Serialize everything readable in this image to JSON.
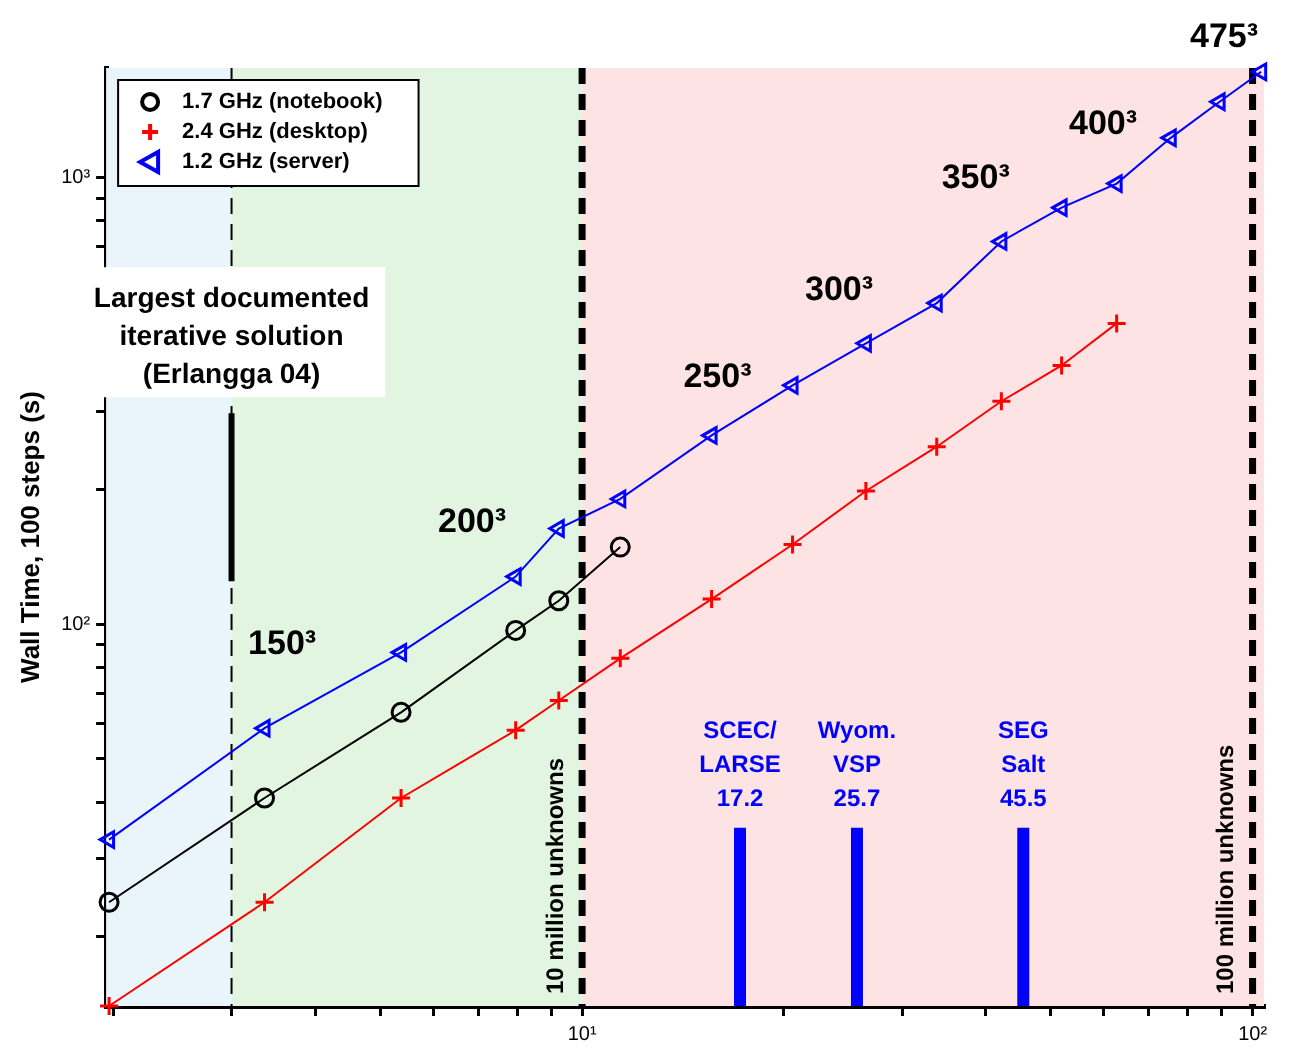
{
  "chart_data": {
    "type": "line",
    "ylabel": "Wall Time, 100 steps (s)",
    "log": "xy",
    "legend": "top left",
    "xlim": [
      1.95,
      104
    ],
    "ylim": [
      14,
      1760
    ],
    "xticks": [
      {
        "value": 2,
        "label": null
      },
      {
        "value": 3,
        "label": null
      },
      {
        "value": 4,
        "label": null
      },
      {
        "value": 5,
        "label": null
      },
      {
        "value": 6,
        "label": null
      },
      {
        "value": 7,
        "label": null
      },
      {
        "value": 8,
        "label": null
      },
      {
        "value": 9,
        "label": null
      },
      {
        "value": 10,
        "label": "10¹"
      },
      {
        "value": 20,
        "label": null
      },
      {
        "value": 30,
        "label": null
      },
      {
        "value": 40,
        "label": null
      },
      {
        "value": 50,
        "label": null
      },
      {
        "value": 60,
        "label": null
      },
      {
        "value": 70,
        "label": null
      },
      {
        "value": 80,
        "label": null
      },
      {
        "value": 90,
        "label": null
      },
      {
        "value": 100,
        "label": "10²"
      }
    ],
    "yticks": [
      {
        "value": 20,
        "label": null
      },
      {
        "value": 30,
        "label": null
      },
      {
        "value": 40,
        "label": null
      },
      {
        "value": 50,
        "label": null
      },
      {
        "value": 60,
        "label": null
      },
      {
        "value": 70,
        "label": null
      },
      {
        "value": 80,
        "label": null
      },
      {
        "value": 90,
        "label": null
      },
      {
        "value": 100,
        "label": "10²"
      },
      {
        "value": 200,
        "label": null
      },
      {
        "value": 300,
        "label": null
      },
      {
        "value": 400,
        "label": null
      },
      {
        "value": 500,
        "label": null
      },
      {
        "value": 600,
        "label": null
      },
      {
        "value": 700,
        "label": null
      },
      {
        "value": 800,
        "label": null
      },
      {
        "value": 900,
        "label": null
      },
      {
        "value": 1000,
        "label": "10³"
      }
    ],
    "series": [
      {
        "name": "1.7 GHz (notebook)",
        "color": "#000000",
        "marker": "circle",
        "x": [
          1.97,
          3.36,
          5.37,
          7.96,
          9.23,
          11.4
        ],
        "values": [
          23.9,
          40.9,
          63.6,
          97,
          113,
          149
        ]
      },
      {
        "name": "2.4 GHz (desktop)",
        "color": "#ff0000",
        "marker": "cross",
        "x": [
          1.97,
          3.36,
          5.37,
          7.96,
          9.23,
          11.4,
          15.6,
          20.6,
          26.5,
          33.8,
          42.2,
          51.9,
          62.7
        ],
        "values": [
          14,
          23.9,
          40.9,
          58,
          67.6,
          84,
          114,
          151,
          199,
          250,
          316,
          380,
          472
        ]
      },
      {
        "name": "1.2 GHz (server)",
        "color": "#0000ff",
        "marker": "triangle",
        "x": [
          1.97,
          3.36,
          5.37,
          7.96,
          9.23,
          11.4,
          15.6,
          20.6,
          26.5,
          33.8,
          42.2,
          51.9,
          62.7,
          75.5,
          89.3,
          103
        ],
        "values": [
          33,
          58.6,
          86.6,
          128,
          164,
          191,
          265,
          343,
          426,
          524,
          720,
          857,
          970,
          1228,
          1479,
          1726
        ]
      },
      {
        "color": "#000000",
        "marker": "none",
        "x": [
          3,
          3
        ],
        "values": [
          125,
          297
        ]
      }
    ],
    "bands": [
      {
        "axis": "x",
        "from": 1.95,
        "to": 3,
        "color": "#eaf4fb"
      },
      {
        "axis": "x",
        "from": 3,
        "to": 10,
        "color": "#e2f5e0"
      },
      {
        "axis": "x",
        "from": 10,
        "to": 104,
        "color": "#fde3e3"
      }
    ],
    "ref_lines": [
      {
        "axis": "x",
        "value": 3,
        "line_style": "dashed",
        "color": "#000000"
      },
      {
        "axis": "x",
        "value": 10,
        "line_style": "dashed",
        "color": "#000000",
        "label": "10 million unknowns"
      },
      {
        "axis": "x",
        "value": 100,
        "line_style": "dashed",
        "color": "#000000",
        "label": "100 million unknowns"
      },
      {
        "axis": "x",
        "value": 17.2,
        "line_style": "solid",
        "color": "#0000ff",
        "label": "SCEC/\nLARSE\n17.2"
      },
      {
        "axis": "x",
        "value": 25.7,
        "line_style": "solid",
        "color": "#0000ff",
        "label": "Wyom.\nVSP\n25.7"
      },
      {
        "axis": "x",
        "value": 45.5,
        "line_style": "solid",
        "color": "#0000ff",
        "label": "SEG\nSalt\n45.5"
      }
    ],
    "annotations": [
      {
        "text": "Largest documented\niterative solution\n(Erlangga 04)",
        "x": 3,
        "y": 297
      },
      "150³",
      "200³",
      "250³",
      "300³",
      "350³",
      "400³",
      "475³"
    ]
  }
}
